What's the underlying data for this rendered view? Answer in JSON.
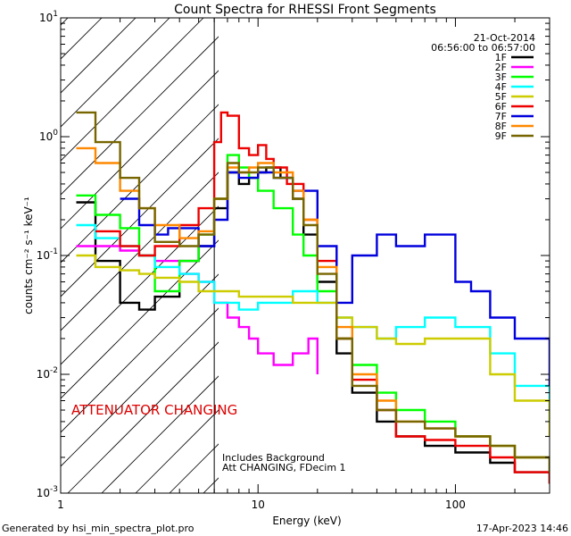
{
  "chart_data": {
    "type": "line",
    "title": "Count Spectra for RHESSI Front Segments",
    "xlabel": "Energy (keV)",
    "ylabel": "counts cm⁻² s⁻¹ keV⁻¹",
    "x_scale": "log",
    "y_scale": "log",
    "xlim": [
      1,
      300
    ],
    "ylim": [
      0.001,
      10
    ],
    "x_ticks": [
      {
        "value": 1,
        "label": "1"
      },
      {
        "value": 10,
        "label": "10"
      },
      {
        "value": 100,
        "label": "100"
      }
    ],
    "y_ticks": [
      {
        "value": 0.001,
        "base": "10",
        "exp": "-3"
      },
      {
        "value": 0.01,
        "base": "10",
        "exp": "-2"
      },
      {
        "value": 0.1,
        "base": "10",
        "exp": "-1"
      },
      {
        "value": 1,
        "base": "10",
        "exp": "0"
      },
      {
        "value": 10,
        "base": "10",
        "exp": "1"
      }
    ],
    "date": "21-Oct-2014",
    "time_range": "06:56:00 to 06:57:00",
    "hatched_region_end_kev": 6,
    "annotations": {
      "attenuator": "ATTENUATOR CHANGING",
      "background": "Includes Background",
      "att_state": "Att CHANGING, FDecim  1"
    },
    "footer": {
      "generated_by": "Generated by hsi_min_spectra_plot.pro",
      "timestamp": "17-Apr-2023 14:46"
    },
    "series": [
      {
        "name": "1F",
        "color": "#000000",
        "points": [
          [
            1.2,
            0.28
          ],
          [
            1.5,
            0.09
          ],
          [
            2,
            0.04
          ],
          [
            2.5,
            0.035
          ],
          [
            3,
            0.045
          ],
          [
            4,
            0.09
          ],
          [
            5,
            0.12
          ],
          [
            6,
            0.25
          ],
          [
            7,
            0.5
          ],
          [
            8,
            0.4
          ],
          [
            9,
            0.45
          ],
          [
            10,
            0.5
          ],
          [
            11,
            0.55
          ],
          [
            13,
            0.45
          ],
          [
            15,
            0.3
          ],
          [
            17,
            0.15
          ],
          [
            20,
            0.06
          ],
          [
            25,
            0.015
          ],
          [
            30,
            0.007
          ],
          [
            40,
            0.004
          ],
          [
            50,
            0.003
          ],
          [
            70,
            0.0025
          ],
          [
            100,
            0.0022
          ],
          [
            150,
            0.0018
          ],
          [
            200,
            0.0015
          ],
          [
            300,
            0.0012
          ]
        ]
      },
      {
        "name": "2F",
        "color": "#ff00ff",
        "points": [
          [
            1.2,
            0.12
          ],
          [
            1.5,
            0.12
          ],
          [
            2,
            0.11
          ],
          [
            2.5,
            0.1
          ],
          [
            3,
            0.09
          ],
          [
            4,
            0.07
          ],
          [
            5,
            0.06
          ],
          [
            6,
            0.04
          ],
          [
            7,
            0.03
          ],
          [
            8,
            0.025
          ],
          [
            9,
            0.02
          ],
          [
            10,
            0.015
          ],
          [
            12,
            0.012
          ],
          [
            15,
            0.015
          ],
          [
            18,
            0.02
          ],
          [
            20,
            0.01
          ]
        ]
      },
      {
        "name": "3F",
        "color": "#00ff00",
        "points": [
          [
            1.2,
            0.32
          ],
          [
            1.5,
            0.22
          ],
          [
            2,
            0.17
          ],
          [
            2.5,
            0.1
          ],
          [
            3,
            0.05
          ],
          [
            4,
            0.09
          ],
          [
            5,
            0.15
          ],
          [
            6,
            0.3
          ],
          [
            7,
            0.7
          ],
          [
            8,
            0.55
          ],
          [
            9,
            0.45
          ],
          [
            10,
            0.35
          ],
          [
            12,
            0.25
          ],
          [
            15,
            0.15
          ],
          [
            17,
            0.1
          ],
          [
            20,
            0.05
          ],
          [
            25,
            0.02
          ],
          [
            30,
            0.012
          ],
          [
            40,
            0.007
          ],
          [
            50,
            0.005
          ],
          [
            70,
            0.004
          ],
          [
            100,
            0.003
          ],
          [
            150,
            0.0025
          ],
          [
            200,
            0.002
          ],
          [
            300,
            0.0015
          ]
        ]
      },
      {
        "name": "4F",
        "color": "#00ffff",
        "points": [
          [
            1.2,
            0.18
          ],
          [
            1.5,
            0.14
          ],
          [
            2,
            0.12
          ],
          [
            2.5,
            0.1
          ],
          [
            3,
            0.08
          ],
          [
            4,
            0.07
          ],
          [
            5,
            0.06
          ],
          [
            6,
            0.04
          ],
          [
            8,
            0.035
          ],
          [
            10,
            0.04
          ],
          [
            15,
            0.05
          ],
          [
            20,
            0.04
          ],
          [
            25,
            0.03
          ],
          [
            30,
            0.025
          ],
          [
            40,
            0.02
          ],
          [
            50,
            0.025
          ],
          [
            70,
            0.03
          ],
          [
            100,
            0.025
          ],
          [
            150,
            0.015
          ],
          [
            200,
            0.008
          ],
          [
            300,
            0.004
          ]
        ]
      },
      {
        "name": "5F",
        "color": "#cccc00",
        "points": [
          [
            1.2,
            0.1
          ],
          [
            1.5,
            0.08
          ],
          [
            2,
            0.075
          ],
          [
            2.5,
            0.07
          ],
          [
            3,
            0.065
          ],
          [
            4,
            0.06
          ],
          [
            5,
            0.05
          ],
          [
            6,
            0.05
          ],
          [
            8,
            0.045
          ],
          [
            10,
            0.045
          ],
          [
            15,
            0.04
          ],
          [
            20,
            0.04
          ],
          [
            25,
            0.03
          ],
          [
            30,
            0.025
          ],
          [
            40,
            0.02
          ],
          [
            50,
            0.018
          ],
          [
            70,
            0.02
          ],
          [
            100,
            0.02
          ],
          [
            150,
            0.01
          ],
          [
            200,
            0.006
          ],
          [
            300,
            0.003
          ]
        ]
      },
      {
        "name": "6F",
        "color": "#ee0000",
        "points": [
          [
            1.5,
            0.16
          ],
          [
            2,
            0.12
          ],
          [
            2.5,
            0.1
          ],
          [
            3,
            0.12
          ],
          [
            4,
            0.18
          ],
          [
            5,
            0.25
          ],
          [
            6,
            0.9
          ],
          [
            6.5,
            1.6
          ],
          [
            7,
            1.5
          ],
          [
            8,
            0.8
          ],
          [
            9,
            0.7
          ],
          [
            10,
            0.85
          ],
          [
            11,
            0.65
          ],
          [
            12,
            0.55
          ],
          [
            14,
            0.4
          ],
          [
            17,
            0.2
          ],
          [
            20,
            0.09
          ],
          [
            25,
            0.02
          ],
          [
            30,
            0.009
          ],
          [
            40,
            0.005
          ],
          [
            50,
            0.003
          ],
          [
            70,
            0.0028
          ],
          [
            100,
            0.0025
          ],
          [
            150,
            0.002
          ],
          [
            200,
            0.0015
          ],
          [
            300,
            0.0012
          ]
        ]
      },
      {
        "name": "7F",
        "color": "#0000dd",
        "points": [
          [
            2,
            0.3
          ],
          [
            2.5,
            0.18
          ],
          [
            3,
            0.15
          ],
          [
            3.5,
            0.17
          ],
          [
            5,
            0.12
          ],
          [
            6,
            0.2
          ],
          [
            7,
            0.5
          ],
          [
            8,
            0.45
          ],
          [
            10,
            0.5
          ],
          [
            12,
            0.45
          ],
          [
            15,
            0.35
          ],
          [
            20,
            0.12
          ],
          [
            25,
            0.04
          ],
          [
            30,
            0.1
          ],
          [
            40,
            0.15
          ],
          [
            50,
            0.12
          ],
          [
            70,
            0.15
          ],
          [
            100,
            0.06
          ],
          [
            120,
            0.05
          ],
          [
            150,
            0.03
          ],
          [
            200,
            0.02
          ],
          [
            300,
            0.008
          ]
        ]
      },
      {
        "name": "8F",
        "color": "#ff8800",
        "points": [
          [
            1.2,
            0.8
          ],
          [
            1.5,
            0.6
          ],
          [
            2,
            0.35
          ],
          [
            2.5,
            0.25
          ],
          [
            3,
            0.18
          ],
          [
            4,
            0.14
          ],
          [
            5,
            0.16
          ],
          [
            6,
            0.3
          ],
          [
            7,
            0.55
          ],
          [
            8,
            0.5
          ],
          [
            9,
            0.55
          ],
          [
            10,
            0.6
          ],
          [
            12,
            0.5
          ],
          [
            15,
            0.35
          ],
          [
            17,
            0.2
          ],
          [
            20,
            0.08
          ],
          [
            25,
            0.025
          ],
          [
            30,
            0.01
          ],
          [
            40,
            0.006
          ],
          [
            50,
            0.004
          ],
          [
            70,
            0.0035
          ],
          [
            100,
            0.003
          ],
          [
            150,
            0.0025
          ],
          [
            200,
            0.002
          ],
          [
            300,
            0.0015
          ]
        ]
      },
      {
        "name": "9F",
        "color": "#776600",
        "points": [
          [
            1.2,
            1.6
          ],
          [
            1.5,
            0.9
          ],
          [
            2,
            0.45
          ],
          [
            2.5,
            0.25
          ],
          [
            3,
            0.13
          ],
          [
            4,
            0.12
          ],
          [
            5,
            0.15
          ],
          [
            6,
            0.3
          ],
          [
            7,
            0.6
          ],
          [
            8,
            0.5
          ],
          [
            9,
            0.5
          ],
          [
            10,
            0.55
          ],
          [
            12,
            0.45
          ],
          [
            15,
            0.3
          ],
          [
            17,
            0.18
          ],
          [
            20,
            0.07
          ],
          [
            25,
            0.02
          ],
          [
            30,
            0.008
          ],
          [
            40,
            0.005
          ],
          [
            50,
            0.004
          ],
          [
            70,
            0.0035
          ],
          [
            100,
            0.003
          ],
          [
            150,
            0.0025
          ],
          [
            200,
            0.002
          ],
          [
            300,
            0.0015
          ]
        ]
      }
    ]
  }
}
